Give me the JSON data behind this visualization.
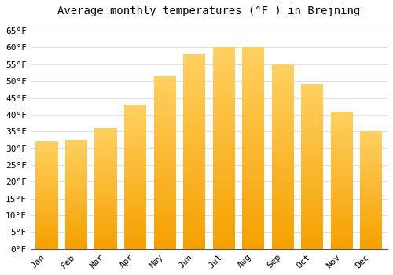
{
  "title": "Average monthly temperatures (°F ) in Brejning",
  "months": [
    "Jan",
    "Feb",
    "Mar",
    "Apr",
    "May",
    "Jun",
    "Jul",
    "Aug",
    "Sep",
    "Oct",
    "Nov",
    "Dec"
  ],
  "values": [
    32,
    32.5,
    36,
    43,
    51.5,
    58,
    60,
    60,
    55,
    49,
    41,
    35
  ],
  "bar_color_main": "#FFA500",
  "bar_color_top": "#FFD070",
  "background_color": "#FFFFFF",
  "grid_color": "#DDDDDD",
  "ylim": [
    0,
    68
  ],
  "yticks": [
    0,
    5,
    10,
    15,
    20,
    25,
    30,
    35,
    40,
    45,
    50,
    55,
    60,
    65
  ],
  "ytick_labels": [
    "0°F",
    "5°F",
    "10°F",
    "15°F",
    "20°F",
    "25°F",
    "30°F",
    "35°F",
    "40°F",
    "45°F",
    "50°F",
    "55°F",
    "60°F",
    "65°F"
  ],
  "title_fontsize": 10,
  "tick_fontsize": 8,
  "font_family": "monospace"
}
